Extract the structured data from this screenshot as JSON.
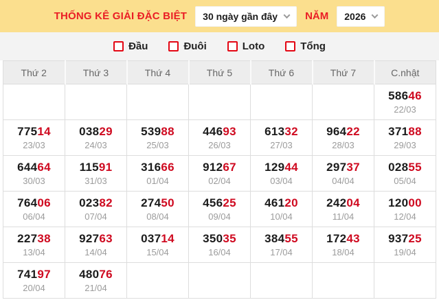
{
  "colors": {
    "header_bg": "#fbdf8e",
    "accent_red": "#ea1d25",
    "number_black": "#1b1b1b",
    "number_red": "#cf0a20",
    "date_gray": "#9b9b9b",
    "column_header_text": "#666666",
    "column_header_bg": "#ededed",
    "filter_band_bg": "#f3f3f3",
    "table_border": "#dddddd",
    "checkbox_red": "#e30613"
  },
  "header": {
    "title": "THỐNG KÊ GIẢI ĐẶC BIỆT",
    "range_select_value": "30 ngày gần đây",
    "year_label": "NĂM",
    "year_select_value": "2026"
  },
  "filters": [
    {
      "id": "dau",
      "label": "Đầu",
      "checked": false
    },
    {
      "id": "duoi",
      "label": "Đuôi",
      "checked": false
    },
    {
      "id": "loto",
      "label": "Loto",
      "checked": false
    },
    {
      "id": "tong",
      "label": "Tổng",
      "checked": false
    }
  ],
  "table": {
    "columns": [
      "Thứ 2",
      "Thứ 3",
      "Thứ 4",
      "Thứ 5",
      "Thứ 6",
      "Thứ 7",
      "C.nhật"
    ],
    "rows": [
      [
        null,
        null,
        null,
        null,
        null,
        null,
        {
          "number": "58646",
          "date": "22/03"
        }
      ],
      [
        {
          "number": "77514",
          "date": "23/03"
        },
        {
          "number": "03829",
          "date": "24/03"
        },
        {
          "number": "53988",
          "date": "25/03"
        },
        {
          "number": "44693",
          "date": "26/03"
        },
        {
          "number": "61332",
          "date": "27/03"
        },
        {
          "number": "96422",
          "date": "28/03"
        },
        {
          "number": "37188",
          "date": "29/03"
        }
      ],
      [
        {
          "number": "64464",
          "date": "30/03"
        },
        {
          "number": "11591",
          "date": "31/03"
        },
        {
          "number": "31666",
          "date": "01/04"
        },
        {
          "number": "91267",
          "date": "02/04"
        },
        {
          "number": "12944",
          "date": "03/04"
        },
        {
          "number": "29737",
          "date": "04/04"
        },
        {
          "number": "02855",
          "date": "05/04"
        }
      ],
      [
        {
          "number": "76406",
          "date": "06/04"
        },
        {
          "number": "02382",
          "date": "07/04"
        },
        {
          "number": "27450",
          "date": "08/04"
        },
        {
          "number": "45625",
          "date": "09/04"
        },
        {
          "number": "46120",
          "date": "10/04"
        },
        {
          "number": "24204",
          "date": "11/04"
        },
        {
          "number": "12000",
          "date": "12/04"
        }
      ],
      [
        {
          "number": "22738",
          "date": "13/04"
        },
        {
          "number": "92763",
          "date": "14/04"
        },
        {
          "number": "03714",
          "date": "15/04"
        },
        {
          "number": "35035",
          "date": "16/04"
        },
        {
          "number": "38455",
          "date": "17/04"
        },
        {
          "number": "17243",
          "date": "18/04"
        },
        {
          "number": "93725",
          "date": "19/04"
        }
      ],
      [
        {
          "number": "74197",
          "date": "20/04"
        },
        {
          "number": "48076",
          "date": "21/04"
        },
        null,
        null,
        null,
        null,
        null
      ]
    ]
  }
}
